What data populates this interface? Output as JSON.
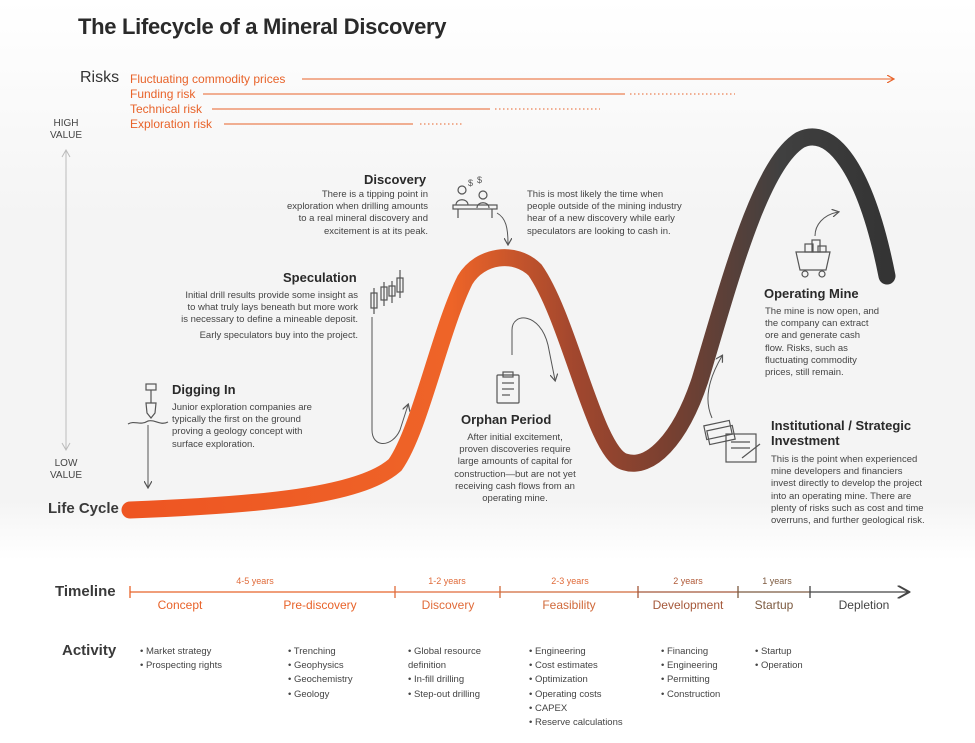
{
  "title": "The Lifecycle of a Mineral Discovery",
  "risks": {
    "label": "Risks",
    "items": [
      {
        "label": "Fluctuating commodity prices"
      },
      {
        "label": "Funding risk"
      },
      {
        "label": "Technical risk"
      },
      {
        "label": "Exploration risk"
      }
    ]
  },
  "value_axis": {
    "high": "HIGH\nVALUE",
    "low": "LOW\nVALUE"
  },
  "lifecycle_label": "Life Cycle",
  "stages": {
    "digging_in": {
      "title": "Digging In",
      "text": "Junior exploration companies are\ntypically the first on the ground\nproving a geology concept with\nsurface exploration."
    },
    "speculation": {
      "title": "Speculation",
      "text": "Initial drill results provide some insight as\nto what truly lays beneath but more work\nis necessary to define a mineable deposit.",
      "text2": "Early speculators buy into the project."
    },
    "discovery": {
      "title": "Discovery",
      "text": "There is a tipping point in\nexploration when drilling amounts\nto a real mineral discovery and\nexcitement is at its peak.",
      "note": "This is most likely the time when\npeople outside of the mining industry\nhear of a new discovery while early\nspeculators are looking to cash in."
    },
    "orphan": {
      "title": "Orphan Period",
      "text": "After initial excitement,\nproven discoveries require\nlarge amounts of capital for\nconstruction—but are not yet\nreceiving cash flows from an\noperating mine."
    },
    "operating": {
      "title": "Operating Mine",
      "text": "The mine is now open, and\nthe company can extract\nore and generate cash\nflow. Risks, such as\nfluctuating commodity\nprices, still remain."
    },
    "institutional": {
      "title": "Institutional / Strategic\nInvestment",
      "text": "This is the point when experienced\nmine developers and financiers\ninvest directly to develop the project\ninto an operating mine. There are\nplenty of risks such as cost and time\noverruns, and further geological risk."
    }
  },
  "timeline": {
    "label": "Timeline",
    "durations": [
      "4-5 years",
      "1-2 years",
      "2-3 years",
      "2 years",
      "1 years"
    ],
    "phases": [
      "Concept",
      "Pre-discovery",
      "Discovery",
      "Feasibility",
      "Development",
      "Startup",
      "Depletion"
    ]
  },
  "activity": {
    "label": "Activity",
    "concept": "• Market strategy\n• Prospecting rights",
    "prediscovery": "• Trenching\n• Geophysics\n• Geochemistry\n• Geology",
    "discovery": "• Global resource\n  definition\n• In-fill drilling\n• Step-out drilling",
    "feasibility": "• Engineering\n• Cost estimates\n• Optimization\n• Operating costs\n• CAPEX\n• Reserve calculations",
    "development": "• Financing\n• Engineering\n• Permitting\n• Construction",
    "startup": "• Startup\n• Operation"
  },
  "colors": {
    "orange": "#e8632a",
    "dark": "#3a3a3a",
    "brown": "#8a5a3c",
    "grey": "#555555"
  }
}
